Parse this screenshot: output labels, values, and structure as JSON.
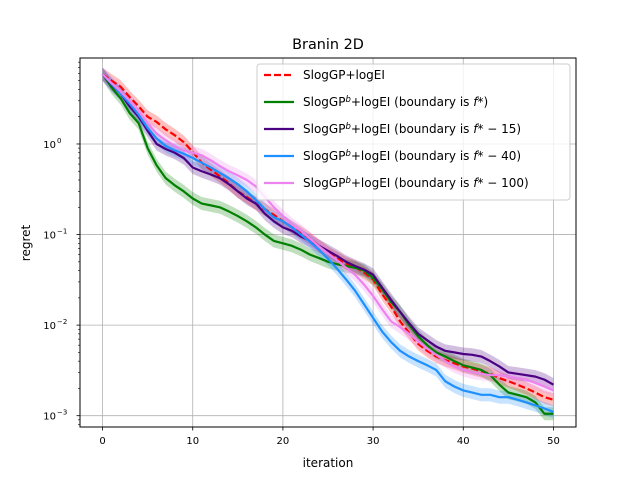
{
  "chart_data": {
    "type": "line",
    "title": "Branin 2D",
    "xlabel": "iteration",
    "ylabel": "regret",
    "xlim": [
      -2.5,
      52.5
    ],
    "ylim": [
      0.00075,
      8.9
    ],
    "yscale": "log",
    "grid": true,
    "legend_position": "upper-right",
    "x_ticks": [
      0,
      10,
      20,
      30,
      40,
      50
    ],
    "y_ticks": [
      {
        "value": 1,
        "base": "10",
        "exp": "0"
      },
      {
        "value": 0.1,
        "base": "10",
        "exp": "−1"
      },
      {
        "value": 0.01,
        "base": "10",
        "exp": "−2"
      },
      {
        "value": 0.001,
        "base": "10",
        "exp": "−3"
      }
    ],
    "series": [
      {
        "name": "SlogGP+logEI",
        "legend": {
          "main": "SlogGP+logEI",
          "sup": "",
          "suffix": "",
          "italic": "",
          "tail": ""
        },
        "color": "#ff0000",
        "dashed": true,
        "x": [
          0,
          1,
          2,
          3,
          4,
          5,
          6,
          7,
          8,
          9,
          10,
          11,
          12,
          13,
          14,
          15,
          16,
          17,
          18,
          19,
          20,
          21,
          22,
          23,
          24,
          25,
          26,
          27,
          28,
          29,
          30,
          31,
          32,
          33,
          34,
          35,
          36,
          37,
          38,
          39,
          40,
          41,
          42,
          43,
          44,
          45,
          46,
          47,
          48,
          49,
          50
        ],
        "values": [
          5.9,
          5.0,
          4.3,
          3.3,
          2.6,
          2.0,
          1.75,
          1.45,
          1.25,
          1.05,
          0.82,
          0.62,
          0.52,
          0.44,
          0.37,
          0.3,
          0.26,
          0.22,
          0.19,
          0.165,
          0.14,
          0.12,
          0.105,
          0.09,
          0.075,
          0.063,
          0.055,
          0.048,
          0.044,
          0.038,
          0.032,
          0.022,
          0.016,
          0.011,
          0.0082,
          0.0062,
          0.0052,
          0.0045,
          0.0041,
          0.0038,
          0.0035,
          0.0033,
          0.0031,
          0.0029,
          0.0026,
          0.0024,
          0.0022,
          0.002,
          0.0018,
          0.0016,
          0.0015
        ],
        "band_ratio": 1.18
      },
      {
        "name": "SlogGPb+logEI (boundary is f*)",
        "legend": {
          "main": "SlogGP",
          "sup": "b",
          "suffix": "+logEI (boundary is ",
          "italic": "f",
          "tail": "*)"
        },
        "color": "#008000",
        "dashed": false,
        "x": [
          0,
          1,
          2,
          3,
          4,
          5,
          6,
          7,
          8,
          9,
          10,
          11,
          12,
          13,
          14,
          15,
          16,
          17,
          18,
          19,
          20,
          21,
          22,
          23,
          24,
          25,
          26,
          27,
          28,
          29,
          30,
          31,
          32,
          33,
          34,
          35,
          36,
          37,
          38,
          39,
          40,
          41,
          42,
          43,
          44,
          45,
          46,
          47,
          48,
          49,
          50
        ],
        "values": [
          5.9,
          4.2,
          3.2,
          2.2,
          1.7,
          0.9,
          0.58,
          0.42,
          0.35,
          0.3,
          0.25,
          0.22,
          0.21,
          0.2,
          0.18,
          0.16,
          0.14,
          0.12,
          0.1,
          0.085,
          0.08,
          0.075,
          0.068,
          0.06,
          0.055,
          0.05,
          0.047,
          0.045,
          0.043,
          0.04,
          0.033,
          0.025,
          0.018,
          0.014,
          0.01,
          0.0075,
          0.006,
          0.005,
          0.0045,
          0.004,
          0.0036,
          0.0034,
          0.0032,
          0.0028,
          0.0022,
          0.0018,
          0.0017,
          0.0016,
          0.0014,
          0.00105,
          0.00105
        ],
        "band_ratio": 1.18
      },
      {
        "name": "SlogGPb+logEI (boundary is f*-15)",
        "legend": {
          "main": "SlogGP",
          "sup": "b",
          "suffix": "+logEI (boundary is ",
          "italic": "f",
          "tail": "* − 15)"
        },
        "color": "#4b0082",
        "dashed": false,
        "x": [
          0,
          1,
          2,
          3,
          4,
          5,
          6,
          7,
          8,
          9,
          10,
          11,
          12,
          13,
          14,
          15,
          16,
          17,
          18,
          19,
          20,
          21,
          22,
          23,
          24,
          25,
          26,
          27,
          28,
          29,
          30,
          31,
          32,
          33,
          34,
          35,
          36,
          37,
          38,
          39,
          40,
          41,
          42,
          43,
          44,
          45,
          46,
          47,
          48,
          49,
          50
        ],
        "values": [
          5.9,
          4.5,
          3.6,
          2.6,
          2.0,
          1.4,
          1.0,
          0.88,
          0.8,
          0.7,
          0.55,
          0.5,
          0.46,
          0.42,
          0.36,
          0.3,
          0.25,
          0.22,
          0.17,
          0.14,
          0.12,
          0.11,
          0.095,
          0.085,
          0.075,
          0.066,
          0.058,
          0.05,
          0.045,
          0.041,
          0.036,
          0.026,
          0.019,
          0.014,
          0.0105,
          0.008,
          0.0068,
          0.0058,
          0.0052,
          0.005,
          0.0048,
          0.0047,
          0.0045,
          0.004,
          0.0035,
          0.003,
          0.0029,
          0.0028,
          0.0027,
          0.0025,
          0.0022
        ],
        "band_ratio": 1.18
      },
      {
        "name": "SlogGPb+logEI (boundary is f*-40)",
        "legend": {
          "main": "SlogGP",
          "sup": "b",
          "suffix": "+logEI (boundary is ",
          "italic": "f",
          "tail": "* − 40)"
        },
        "color": "#1e90ff",
        "dashed": false,
        "x": [
          0,
          1,
          2,
          3,
          4,
          5,
          6,
          7,
          8,
          9,
          10,
          11,
          12,
          13,
          14,
          15,
          16,
          17,
          18,
          19,
          20,
          21,
          22,
          23,
          24,
          25,
          26,
          27,
          28,
          29,
          30,
          31,
          32,
          33,
          34,
          35,
          36,
          37,
          38,
          39,
          40,
          41,
          42,
          43,
          44,
          45,
          46,
          47,
          48,
          49,
          50
        ],
        "values": [
          5.9,
          4.6,
          3.6,
          2.8,
          2.1,
          1.5,
          1.15,
          0.95,
          0.85,
          0.78,
          0.7,
          0.62,
          0.55,
          0.48,
          0.42,
          0.36,
          0.3,
          0.24,
          0.19,
          0.155,
          0.14,
          0.12,
          0.1,
          0.083,
          0.068,
          0.054,
          0.042,
          0.032,
          0.024,
          0.017,
          0.012,
          0.0085,
          0.0065,
          0.0052,
          0.0045,
          0.004,
          0.0036,
          0.0032,
          0.0024,
          0.0021,
          0.0019,
          0.0018,
          0.0017,
          0.0017,
          0.0016,
          0.0016,
          0.0015,
          0.0014,
          0.0013,
          0.0012,
          0.0011
        ],
        "band_ratio": 1.18
      },
      {
        "name": "SlogGPb+logEI (boundary is f*-100)",
        "legend": {
          "main": "SlogGP",
          "sup": "b",
          "suffix": "+logEI (boundary is ",
          "italic": "f",
          "tail": "* − 100)"
        },
        "color": "#ee82ee",
        "dashed": false,
        "x": [
          0,
          1,
          2,
          3,
          4,
          5,
          6,
          7,
          8,
          9,
          10,
          11,
          12,
          13,
          14,
          15,
          16,
          17,
          18,
          19,
          20,
          21,
          22,
          23,
          24,
          25,
          26,
          27,
          28,
          29,
          30,
          31,
          32,
          33,
          34,
          35,
          36,
          37,
          38,
          39,
          40,
          41,
          42,
          43,
          44,
          45,
          46,
          47,
          48,
          49,
          50
        ],
        "values": [
          5.9,
          4.7,
          3.8,
          3.0,
          2.3,
          1.7,
          1.3,
          1.1,
          0.95,
          0.85,
          0.8,
          0.75,
          0.66,
          0.57,
          0.5,
          0.45,
          0.4,
          0.34,
          0.26,
          0.2,
          0.16,
          0.13,
          0.11,
          0.09,
          0.074,
          0.062,
          0.052,
          0.043,
          0.036,
          0.028,
          0.021,
          0.015,
          0.011,
          0.0095,
          0.008,
          0.0066,
          0.0055,
          0.0047,
          0.004,
          0.0035,
          0.0032,
          0.003,
          0.0029,
          0.0028,
          0.0028,
          0.0027,
          0.0026,
          0.0025,
          0.0023,
          0.0021,
          0.0019
        ],
        "band_ratio": 1.18
      }
    ]
  }
}
